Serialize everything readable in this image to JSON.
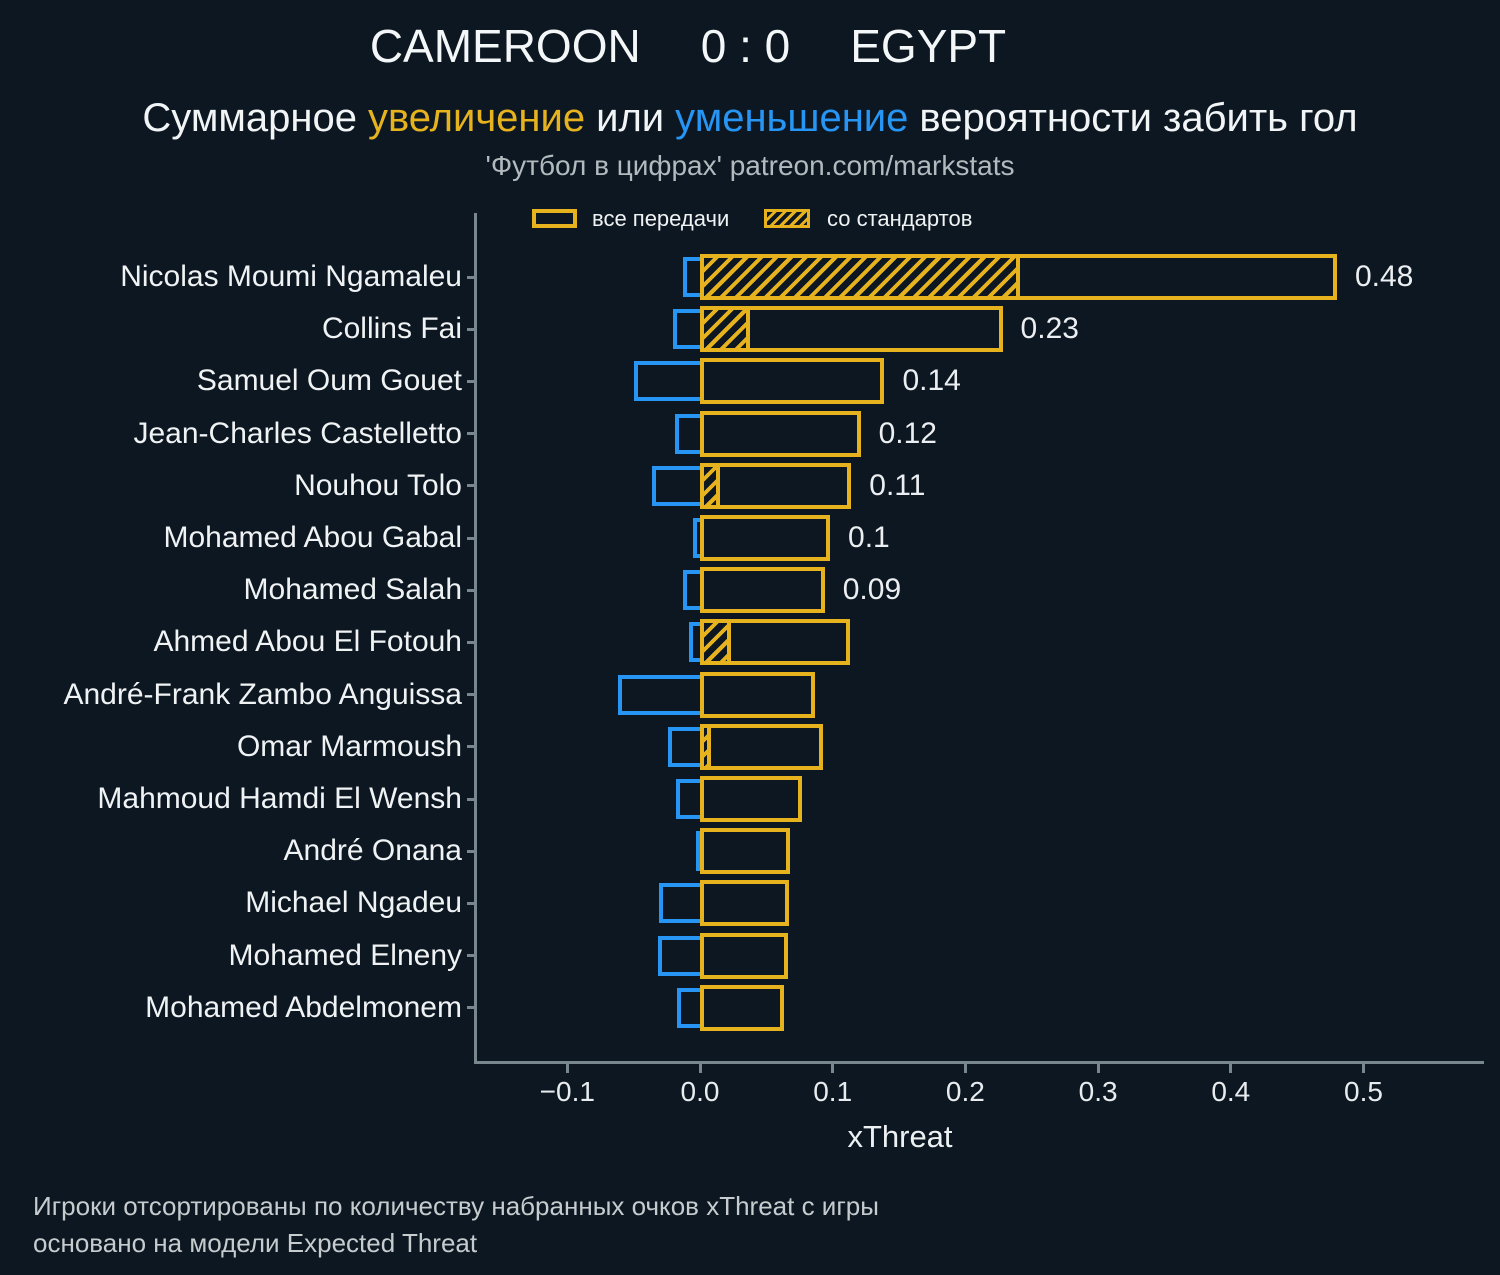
{
  "header": {
    "home_team": "CAMEROON",
    "score": "0 : 0",
    "away_team": "EGYPT",
    "subtitle": {
      "lead": "Суммарное",
      "increase": "увеличение",
      "middle": "или",
      "decrease": "уменьшение",
      "tail": "вероятности забить гол"
    },
    "credit": "'Футбол в цифрах' patreon.com/markstats"
  },
  "legend": {
    "all_passes": "все передачи",
    "set_pieces": "со стандартов"
  },
  "axis": {
    "xlabel": "xThreat"
  },
  "footer": {
    "line1": "Игроки отсортированы по количеству набранных очков xThreat с игры",
    "line2": "основано на модели Expected Threat"
  },
  "colors": {
    "increase": "#e6b31e",
    "decrease": "#2795f3",
    "background": "#0d1722",
    "axis": "#77878d"
  },
  "chart_data": {
    "type": "bar",
    "orientation": "horizontal",
    "title": "CAMEROON 0 : 0 EGYPT",
    "xlabel": "xThreat",
    "xlim": [
      -0.17,
      0.59
    ],
    "grid": false,
    "legend_position": "top-inside",
    "x_ticks": [
      {
        "v": -0.1,
        "label": "−0.1"
      },
      {
        "v": 0.0,
        "label": "0.0"
      },
      {
        "v": 0.1,
        "label": "0.1"
      },
      {
        "v": 0.2,
        "label": "0.2"
      },
      {
        "v": 0.3,
        "label": "0.3"
      },
      {
        "v": 0.4,
        "label": "0.4"
      },
      {
        "v": 0.5,
        "label": "0.5"
      }
    ],
    "series_legend": [
      "все передачи",
      "со стандартов"
    ],
    "players": [
      {
        "name": "Nicolas Moumi Ngamaleu",
        "increase": 0.48,
        "decrease": -0.013,
        "set_piece": 0.241,
        "label": "0.48"
      },
      {
        "name": "Collins Fai",
        "increase": 0.228,
        "decrease": -0.02,
        "set_piece": 0.038,
        "label": "0.23"
      },
      {
        "name": "Samuel Oum Gouet",
        "increase": 0.139,
        "decrease": -0.05,
        "set_piece": 0,
        "label": "0.14"
      },
      {
        "name": "Jean-Charles Castelletto",
        "increase": 0.121,
        "decrease": -0.019,
        "set_piece": 0,
        "label": "0.12"
      },
      {
        "name": "Nouhou Tolo",
        "increase": 0.114,
        "decrease": -0.036,
        "set_piece": 0.015,
        "label": "0.11"
      },
      {
        "name": "Mohamed Abou Gabal",
        "increase": 0.098,
        "decrease": -0.005,
        "set_piece": 0,
        "label": "0.1"
      },
      {
        "name": "Mohamed Salah",
        "increase": 0.094,
        "decrease": -0.013,
        "set_piece": 0,
        "label": "0.09"
      },
      {
        "name": "Ahmed Abou El Fotouh",
        "increase": 0.113,
        "decrease": -0.008,
        "set_piece": 0.023,
        "label": ""
      },
      {
        "name": "André-Frank Zambo Anguissa",
        "increase": 0.087,
        "decrease": -0.062,
        "set_piece": 0,
        "label": ""
      },
      {
        "name": "Omar Marmoush",
        "increase": 0.093,
        "decrease": -0.024,
        "set_piece": 0.008,
        "label": ""
      },
      {
        "name": "Mahmoud Hamdi El Wensh",
        "increase": 0.077,
        "decrease": -0.018,
        "set_piece": 0,
        "label": ""
      },
      {
        "name": "André Onana",
        "increase": 0.068,
        "decrease": -0.003,
        "set_piece": 0,
        "label": ""
      },
      {
        "name": "Michael Ngadeu",
        "increase": 0.067,
        "decrease": -0.031,
        "set_piece": 0,
        "label": ""
      },
      {
        "name": "Mohamed Elneny",
        "increase": 0.066,
        "decrease": -0.032,
        "set_piece": 0,
        "label": ""
      },
      {
        "name": "Mohamed Abdelmonem",
        "increase": 0.063,
        "decrease": -0.017,
        "set_piece": 0,
        "label": ""
      }
    ]
  }
}
